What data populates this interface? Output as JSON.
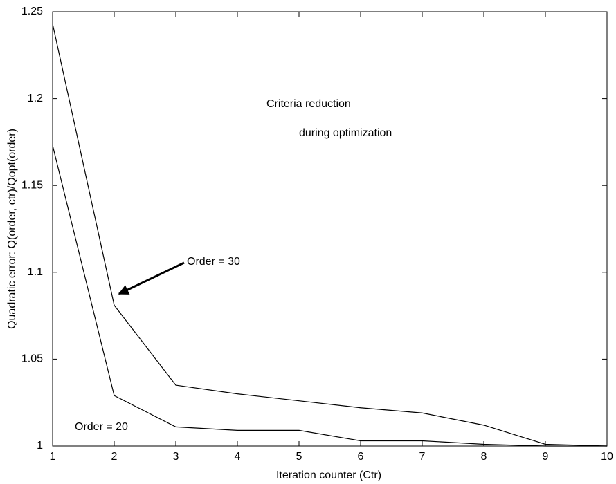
{
  "chart_data": {
    "type": "line",
    "xlabel": "Iteration counter (Ctr)",
    "ylabel": "Quadratic error: Q(order, ctr)/Qopt(order)",
    "annotations": [
      "Criteria reduction",
      "during optimization"
    ],
    "x": [
      1,
      2,
      3,
      4,
      5,
      6,
      7,
      8,
      9,
      10
    ],
    "series": [
      {
        "name": "Order = 30",
        "color": "#000000",
        "values": [
          1.243,
          1.081,
          1.035,
          1.03,
          1.026,
          1.022,
          1.019,
          1.012,
          1.001,
          1.0
        ]
      },
      {
        "name": "Order = 20",
        "color": "#000000",
        "values": [
          1.173,
          1.029,
          1.011,
          1.009,
          1.009,
          1.003,
          1.003,
          1.001,
          1.0,
          1.0
        ]
      }
    ],
    "xlim": [
      1,
      10
    ],
    "xticks": [
      1,
      2,
      3,
      4,
      5,
      6,
      7,
      8,
      9,
      10
    ],
    "ylim": [
      1,
      1.25
    ],
    "yticks": [
      1,
      1.05,
      1.1,
      1.15,
      1.2,
      1.25
    ],
    "grid": false
  }
}
